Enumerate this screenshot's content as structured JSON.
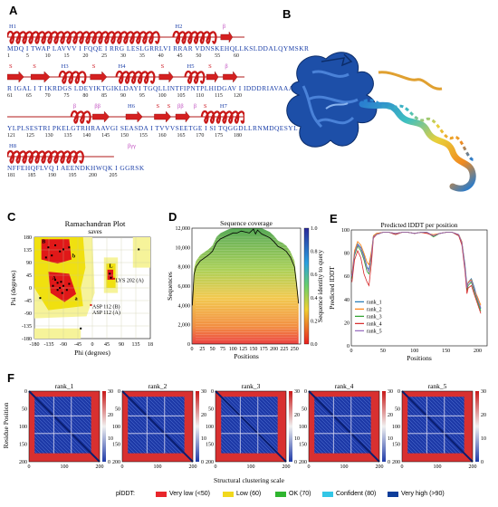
{
  "panels": {
    "a": "A",
    "b": "B",
    "c": "C",
    "d": "D",
    "e": "E",
    "f": "F"
  },
  "sequence_rows": [
    {
      "seq": "MDQ I TWAP LAVVV I FQQE I RRG LESLGRRLVI RRAR VDNSKEHQLLKSLDDALQYMSKR",
      "ticks": [
        "1",
        "5",
        "10",
        "15",
        "20",
        "25",
        "30",
        "35",
        "40",
        "45",
        "50",
        "55",
        "60"
      ],
      "labels": [
        {
          "t": "H1",
          "c": "h"
        },
        {
          "t": "H2",
          "c": "h"
        },
        {
          "t": "β",
          "c": "b"
        }
      ]
    },
    {
      "seq": "R IGAL I T IKRDGS LDEYIKTGIKLDAYI TGQLLINTFIPNTPLHIDGAV I IDDDRIAVAAA",
      "ticks": [
        "61",
        "65",
        "70",
        "75",
        "80",
        "85",
        "90",
        "95",
        "100",
        "105",
        "110",
        "115",
        "120"
      ],
      "labels": [
        {
          "t": "S",
          "c": "s"
        },
        {
          "t": "S",
          "c": "s"
        },
        {
          "t": "H3",
          "c": "h"
        },
        {
          "t": "S",
          "c": "s"
        },
        {
          "t": "H4",
          "c": "h"
        },
        {
          "t": "S",
          "c": "s"
        },
        {
          "t": "H5",
          "c": "h"
        },
        {
          "t": "S",
          "c": "s"
        },
        {
          "t": "β",
          "c": "b"
        }
      ]
    },
    {
      "seq": "YLPLSESTRI PKELGTRHRAAVGI SEASDA I TVVVSEETGE I SI TQGGDLLRNMDQESYL",
      "ticks": [
        "121",
        "125",
        "130",
        "135",
        "140",
        "145",
        "150",
        "155",
        "160",
        "165",
        "170",
        "175",
        "180"
      ],
      "labels": [
        {
          "t": "ββ",
          "c": "b"
        },
        {
          "t": "β",
          "c": "b"
        },
        {
          "t": "H6",
          "c": "h"
        },
        {
          "t": "S",
          "c": "s"
        },
        {
          "t": "ββ",
          "c": "b"
        },
        {
          "t": "S",
          "c": "s"
        },
        {
          "t": "S",
          "c": "s"
        },
        {
          "t": "β",
          "c": "b"
        },
        {
          "t": "H7",
          "c": "h"
        }
      ]
    },
    {
      "seq": "NFFEHQFLVQ I AEENDKHWQK I GGRSK",
      "ticks": [
        "181",
        "185",
        "190",
        "195",
        "200",
        "205"
      ],
      "labels": [
        {
          "t": "H8",
          "c": "h"
        },
        {
          "t": "βγγ",
          "c": "b"
        }
      ]
    }
  ],
  "rama": {
    "title": "Ramachandran Plot",
    "subtitle": "saves",
    "xlabel": "Phi (degrees)",
    "ylabel": "Psi (degrees)",
    "xticks": [
      "-180",
      "-135",
      "-90",
      "-45",
      "0",
      "45",
      "90",
      "135",
      "18"
    ],
    "yticks": [
      "180",
      "135",
      "90",
      "45",
      "0",
      "-45",
      "-90",
      "-135",
      "-180"
    ],
    "annotations": [
      "LYS 202 (A)",
      "ASP 112 (B)",
      "ASP 112 (A)"
    ],
    "region_labels": [
      "B",
      "b",
      "A",
      "a",
      "L"
    ]
  },
  "chart_data": [
    {
      "type": "line",
      "title": "Sequence coverage",
      "xlabel": "Positions",
      "ylabel": "Sequences",
      "colorbar_label": "Sequence identity to query",
      "colorbar_ticks": [
        "1.0",
        "0.8",
        "0.6",
        "0.4",
        "0.2",
        "0.0"
      ],
      "xlim": [
        0,
        265
      ],
      "ylim": [
        0,
        12000
      ],
      "xticks": [
        0,
        25,
        50,
        75,
        100,
        125,
        150,
        175,
        200,
        225,
        250
      ],
      "yticks": [
        0,
        2000,
        4000,
        6000,
        8000,
        10000,
        12000
      ],
      "ytick_labels": [
        "0",
        "2,000",
        "4,000",
        "6,000",
        "8,000",
        "10,000",
        "12,000"
      ],
      "x": [
        1,
        5,
        10,
        20,
        30,
        40,
        50,
        60,
        70,
        80,
        90,
        100,
        110,
        120,
        130,
        140,
        150,
        155,
        160,
        170,
        180,
        190,
        200,
        210,
        220,
        230,
        240,
        250,
        255,
        260
      ],
      "values": [
        4000,
        7200,
        8000,
        8600,
        8900,
        9200,
        9600,
        10500,
        10900,
        11100,
        11300,
        11500,
        11500,
        11700,
        11600,
        11500,
        11900,
        11400,
        11800,
        11400,
        11200,
        11000,
        10600,
        10100,
        9900,
        9600,
        9000,
        8000,
        6200,
        4200
      ]
    },
    {
      "type": "line",
      "title": "Predicted lDDT per position",
      "xlabel": "Positions",
      "ylabel": "Predicted lDDT",
      "xlim": [
        0,
        215
      ],
      "ylim": [
        0,
        100
      ],
      "xticks": [
        0,
        50,
        100,
        150,
        200
      ],
      "yticks": [
        0,
        20,
        40,
        60,
        80,
        100
      ],
      "x": [
        1,
        5,
        10,
        15,
        20,
        25,
        28,
        32,
        35,
        40,
        50,
        60,
        70,
        80,
        90,
        100,
        110,
        120,
        130,
        140,
        150,
        160,
        170,
        175,
        180,
        183,
        185,
        190,
        195,
        200,
        205
      ],
      "series": [
        {
          "name": "rank_1",
          "color": "#1f77b4",
          "values": [
            60,
            80,
            88,
            85,
            78,
            68,
            66,
            80,
            95,
            97,
            98,
            98,
            97,
            98,
            98,
            97,
            98,
            98,
            95,
            97,
            98,
            98,
            96,
            90,
            70,
            52,
            55,
            58,
            50,
            40,
            32
          ]
        },
        {
          "name": "rank_2",
          "color": "#ff7f0e",
          "values": [
            62,
            82,
            90,
            87,
            80,
            72,
            70,
            82,
            95,
            97,
            98,
            98,
            97,
            98,
            98,
            97,
            98,
            97,
            96,
            97,
            98,
            98,
            96,
            90,
            68,
            50,
            55,
            57,
            48,
            42,
            35
          ]
        },
        {
          "name": "rank_3",
          "color": "#2ca02c",
          "values": [
            58,
            78,
            86,
            82,
            74,
            64,
            62,
            78,
            94,
            96,
            98,
            98,
            96,
            98,
            98,
            97,
            98,
            98,
            94,
            97,
            98,
            98,
            95,
            88,
            66,
            48,
            52,
            55,
            46,
            38,
            30
          ]
        },
        {
          "name": "rank_4",
          "color": "#d62728",
          "values": [
            55,
            74,
            82,
            76,
            62,
            55,
            52,
            72,
            93,
            96,
            98,
            98,
            96,
            98,
            98,
            97,
            98,
            97,
            95,
            97,
            98,
            98,
            95,
            87,
            64,
            45,
            50,
            52,
            44,
            36,
            28
          ]
        },
        {
          "name": "rank_5",
          "color": "#9467bd",
          "values": [
            60,
            80,
            87,
            84,
            76,
            67,
            64,
            79,
            94,
            96,
            98,
            98,
            97,
            98,
            98,
            97,
            98,
            98,
            95,
            97,
            98,
            98,
            96,
            89,
            67,
            50,
            54,
            56,
            48,
            40,
            33
          ]
        }
      ]
    }
  ],
  "pae": {
    "ylabel": "Residue Position",
    "xlabel": "Structural clustering scale",
    "ranks": [
      "rank_1",
      "rank_2",
      "rank_3",
      "rank_4",
      "rank_5"
    ],
    "xticks": [
      "0",
      "100",
      "200"
    ],
    "yticks": [
      "0",
      "50",
      "100",
      "150",
      "200"
    ],
    "cbar_ticks": [
      "30",
      "20",
      "10",
      "0"
    ]
  },
  "plddt_legend": {
    "label": "plDDT:",
    "items": [
      {
        "text": "Very low (<50)",
        "color": "#e8262b"
      },
      {
        "text": "Low (60)",
        "color": "#f1d81c"
      },
      {
        "text": "OK (70)",
        "color": "#2fb52f"
      },
      {
        "text": "Confident (80)",
        "color": "#33c6e6"
      },
      {
        "text": "Very high (>90)",
        "color": "#0d3d9a"
      }
    ]
  }
}
